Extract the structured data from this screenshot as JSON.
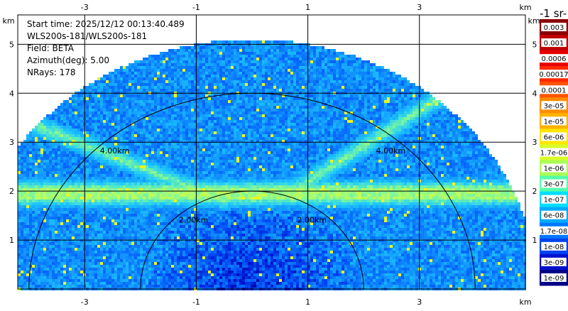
{
  "info": {
    "start_time": "Start time: 2025/12/12 00:13:40.489",
    "instrument": "WLS200s-181/WLS200s-181",
    "field": "Field: BETA",
    "azimuth": "Azimuth(deg): 5.00",
    "nrays": "NRays: 178"
  },
  "chart_data": {
    "type": "heatmap",
    "projection": "RHI sector, 0-180 deg elevation",
    "field": "BETA",
    "azimuth_deg": 5.0,
    "n_rays": 178,
    "x_unit_label": "km",
    "y_unit_label": "km",
    "xlim": [
      -4.2,
      4.9
    ],
    "ylim": [
      0,
      5.6
    ],
    "max_range_km": 5.1,
    "x_ticks": [
      -3,
      -1,
      1,
      3
    ],
    "y_ticks": [
      1,
      2,
      3,
      4,
      5
    ],
    "range_rings_km": [
      2.0,
      4.0
    ],
    "ring_labels": [
      "2.00km",
      "4.00km"
    ],
    "grid": true,
    "features": [
      {
        "desc": "aerosol layer (enhanced backscatter)",
        "height_km": [
          1.85,
          2.05
        ]
      },
      {
        "desc": "enhanced band on left side",
        "from": [
          -4.0,
          3.4
        ],
        "to": [
          -0.5,
          1.8
        ]
      },
      {
        "desc": "enhanced band on right side",
        "from": [
          0.6,
          1.9
        ],
        "to": [
          3.5,
          4.0
        ]
      }
    ],
    "colorbar": {
      "title": "-1 sr-",
      "labels": [
        "0.003",
        "0.001",
        "0.0006",
        "0.00017",
        "0.0001",
        "3e-05",
        "1e-05",
        "6e-06",
        "1.7e-06",
        "1e-06",
        "3e-07",
        "1e-07",
        "6e-08",
        "1.7e-08",
        "1e-08",
        "3e-09",
        "1e-09"
      ],
      "colors": [
        "#8b0000",
        "#c00000",
        "#e60000",
        "#ff2a00",
        "#ff5500",
        "#ff8c00",
        "#ffb300",
        "#ffe600",
        "#d8ff2a",
        "#aaff55",
        "#55ffaa",
        "#00ddff",
        "#00aaff",
        "#0077ff",
        "#0044ee",
        "#0011cc",
        "#000088"
      ]
    }
  }
}
